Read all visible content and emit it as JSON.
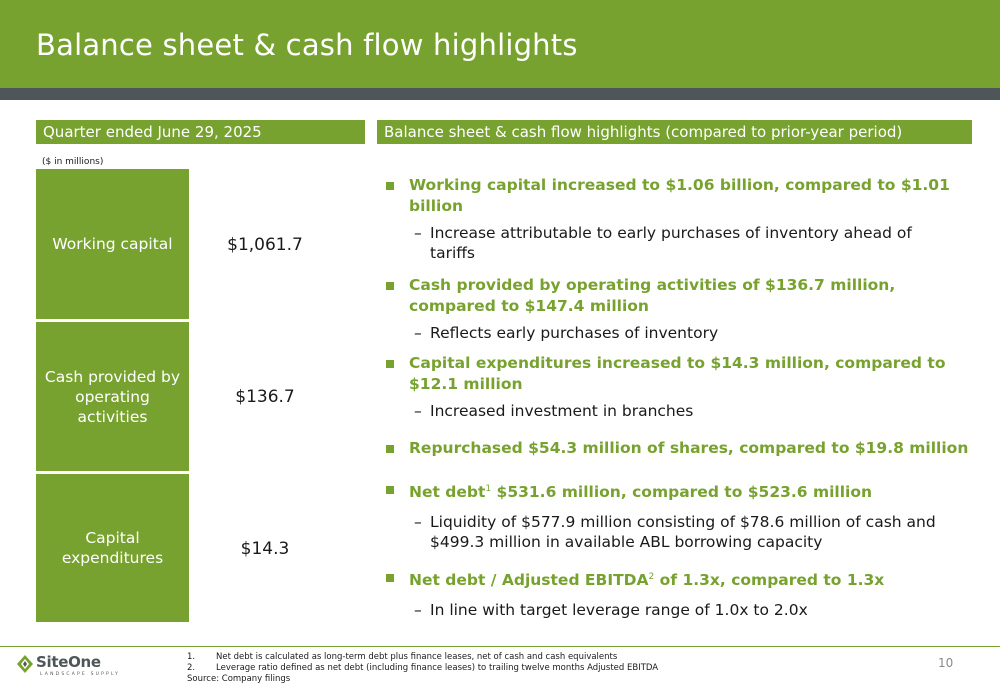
{
  "slide": {
    "title": "Balance sheet & cash flow highlights",
    "page_number": "10"
  },
  "left_panel": {
    "header": "Quarter ended June 29, 2025",
    "units": "($ in millions)",
    "metrics": [
      {
        "label": "Working capital",
        "value": "$1,061.7"
      },
      {
        "label": "Cash provided by operating activities",
        "value": "$136.7"
      },
      {
        "label": "Capital expenditures",
        "value": "$14.3"
      }
    ]
  },
  "right_panel": {
    "header": "Balance sheet & cash flow highlights (compared to prior-year period)",
    "bullets": [
      {
        "main_1": "Working capital increased to $1.06 billion, compared to $1.01",
        "main_2": "billion",
        "sub_1": "Increase attributable to early purchases of inventory ahead of",
        "sub_2": "tariffs"
      },
      {
        "main_1": "Cash provided by operating activities of $136.7 million,",
        "main_2": "compared to $147.4 million",
        "sub_1": "Reflects early purchases of inventory"
      },
      {
        "main_1": "Capital expenditures increased to $14.3 million, compared to",
        "main_2": "$12.1 million",
        "sub_1": "Increased investment in branches"
      },
      {
        "main_1": "Repurchased $54.3 million of shares, compared to $19.8 million"
      },
      {
        "main_pre": "Net debt",
        "sup": "1",
        "main_post": " $531.6 million, compared to $523.6 million",
        "sub_1": "Liquidity of $577.9 million consisting of $78.6 million of cash and",
        "sub_2": "$499.3 million in available ABL borrowing capacity"
      },
      {
        "main_pre": "Net debt / Adjusted EBITDA",
        "sup": "2",
        "main_post": " of 1.3x, compared to 1.3x",
        "sub_1": "In line with target leverage range of 1.0x to 2.0x"
      }
    ],
    "dash": "–"
  },
  "footer": {
    "logo_text": "SiteOne",
    "logo_tagline": "LANDSCAPE SUPPLY",
    "notes": [
      {
        "num": "1.",
        "text": "Net debt is calculated as long-term debt plus finance leases, net of cash and cash equivalents"
      },
      {
        "num": "2.",
        "text": "Leverage ratio defined as net debt (including finance leases) to trailing twelve months Adjusted EBITDA"
      }
    ],
    "source": "Source:  Company filings"
  },
  "colors": {
    "brand_green": "#78a22f",
    "band_gray": "#4f5659"
  }
}
